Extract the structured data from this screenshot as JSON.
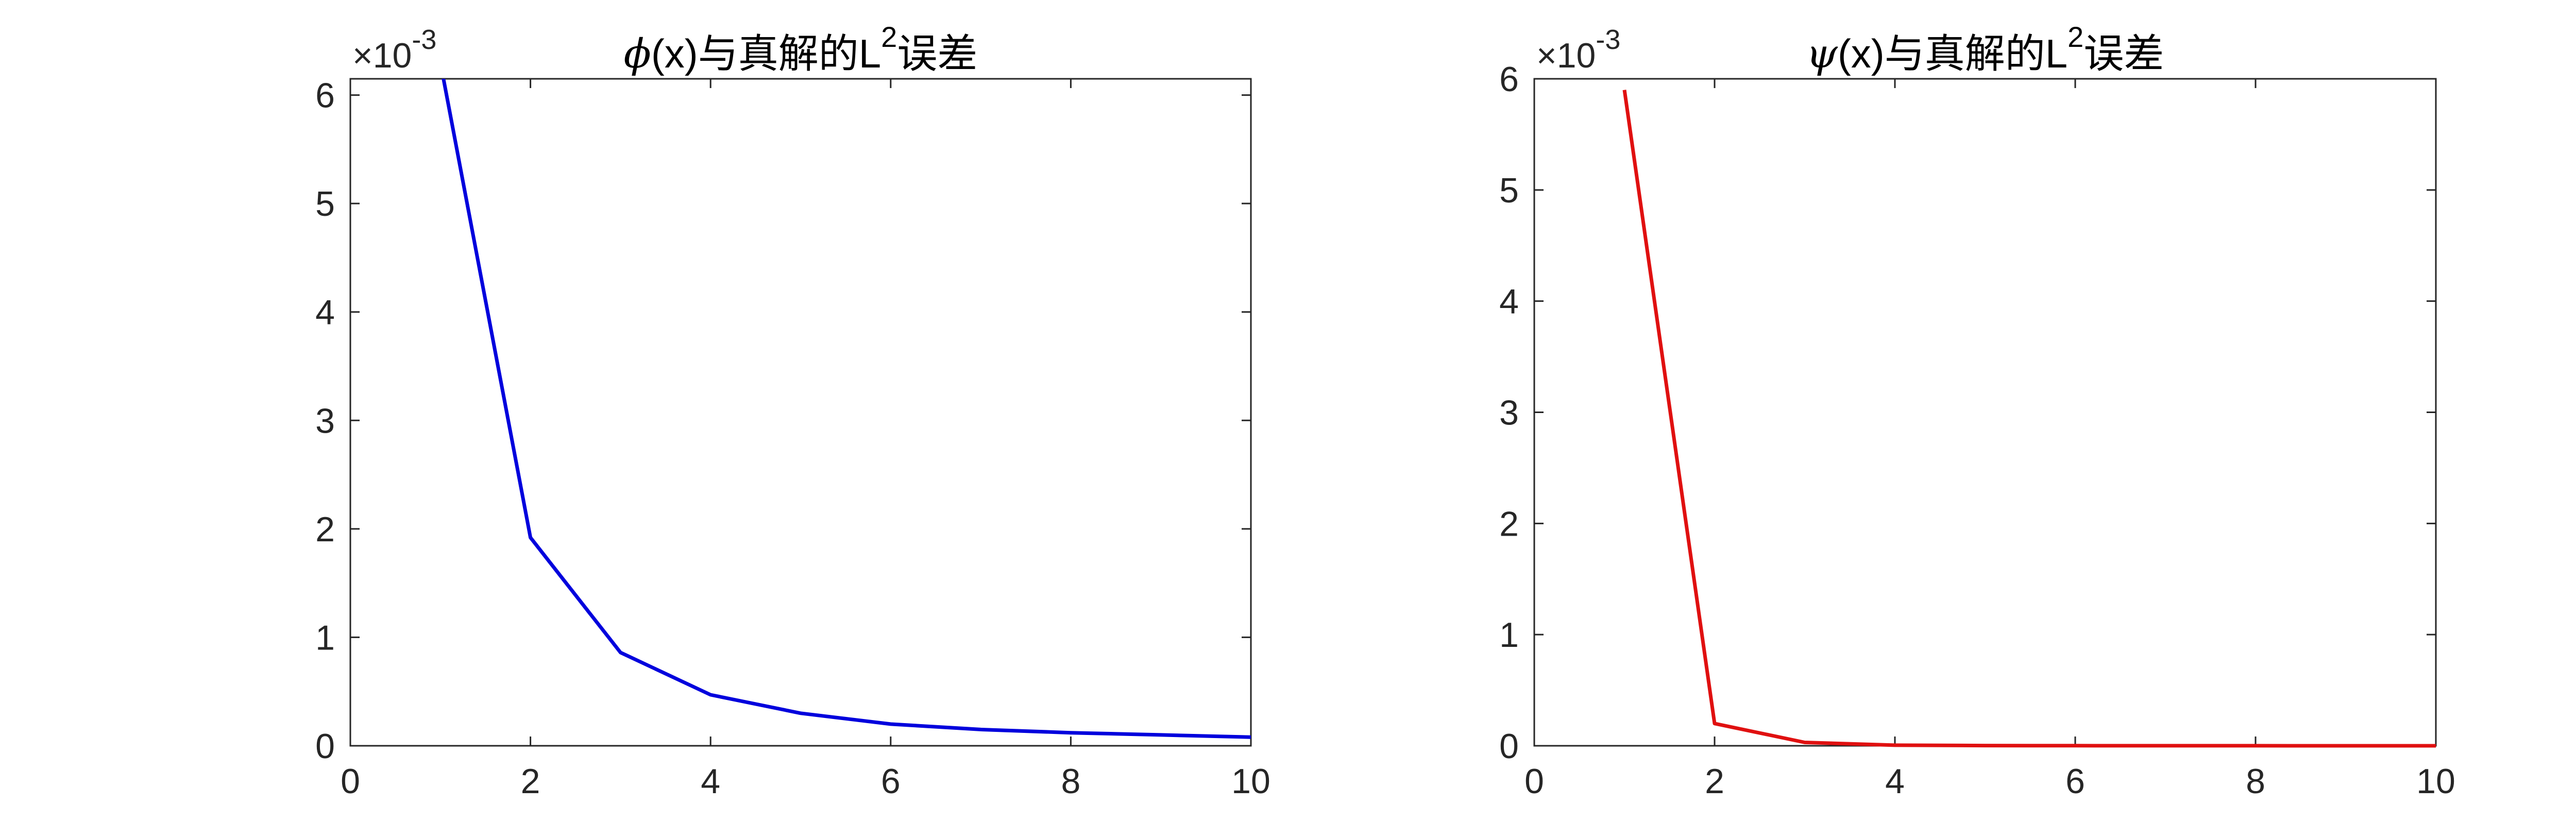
{
  "chart_data": [
    {
      "type": "line",
      "title": {
        "symbol": "ϕ",
        "text": "(x)与真解的L",
        "superscript": "2",
        "suffix": "误差"
      },
      "y_exponent": {
        "base": "×10",
        "power": "-3"
      },
      "xlim": [
        0,
        10
      ],
      "ylim": [
        0,
        6.15
      ],
      "x_ticks": [
        0,
        2,
        4,
        6,
        8,
        10
      ],
      "y_ticks": [
        0,
        1,
        2,
        3,
        4,
        5,
        6
      ],
      "x_tick_labels": [
        "0",
        "2",
        "4",
        "6",
        "8",
        "10"
      ],
      "y_tick_labels": [
        "0",
        "1",
        "2",
        "3",
        "4",
        "5",
        "6"
      ],
      "series": [
        {
          "color": "#0000dd",
          "x": [
            1,
            2,
            3,
            4,
            5,
            6,
            7,
            8,
            9,
            10
          ],
          "y": [
            6.3,
            1.92,
            0.86,
            0.47,
            0.3,
            0.2,
            0.15,
            0.12,
            0.1,
            0.08
          ]
        }
      ]
    },
    {
      "type": "line",
      "title": {
        "symbol": "ψ",
        "text": "(x)与真解的L",
        "superscript": "2",
        "suffix": "误差"
      },
      "y_exponent": {
        "base": "×10",
        "power": "-3"
      },
      "xlim": [
        0,
        10
      ],
      "ylim": [
        0,
        6
      ],
      "x_ticks": [
        0,
        2,
        4,
        6,
        8,
        10
      ],
      "y_ticks": [
        0,
        1,
        2,
        3,
        4,
        5,
        6
      ],
      "x_tick_labels": [
        "0",
        "2",
        "4",
        "6",
        "8",
        "10"
      ],
      "y_tick_labels": [
        "0",
        "1",
        "2",
        "3",
        "4",
        "5",
        "6"
      ],
      "series": [
        {
          "color": "#e01010",
          "x": [
            1,
            2,
            3,
            4,
            5,
            6,
            7,
            8,
            9,
            10
          ],
          "y": [
            5.9,
            0.2,
            0.03,
            0.005,
            0.002,
            0.001,
            0.0005,
            0.0003,
            0.0002,
            0.0001
          ]
        }
      ]
    }
  ]
}
